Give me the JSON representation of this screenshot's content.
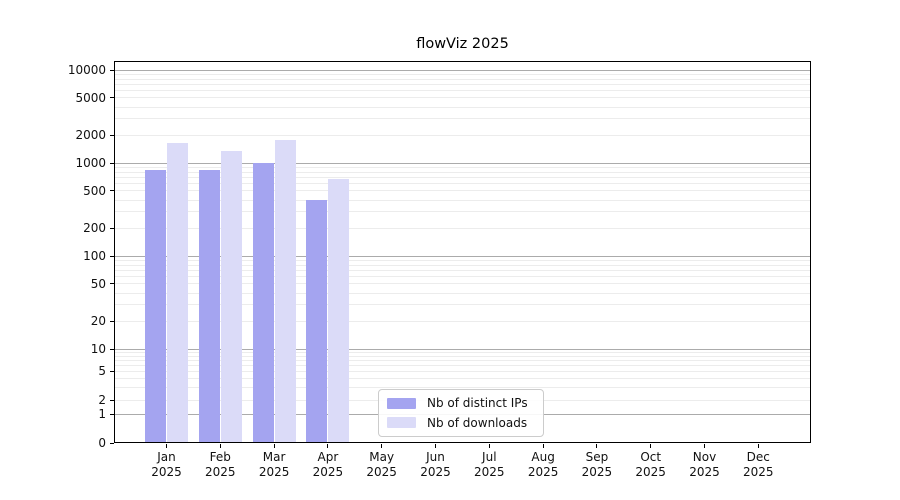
{
  "chart_data": {
    "type": "bar",
    "title": "flowViz 2025",
    "scale": "symlog",
    "grid": "horizontal, major and minor log lines",
    "legend_position": "inside bottom-left-of-center",
    "year": "2025",
    "categories": [
      "Jan",
      "Feb",
      "Mar",
      "Apr",
      "May",
      "Jun",
      "Jul",
      "Aug",
      "Sep",
      "Oct",
      "Nov",
      "Dec"
    ],
    "y_ticks": [
      10000,
      5000,
      2000,
      1000,
      500,
      200,
      100,
      50,
      20,
      10,
      5,
      2,
      1,
      0
    ],
    "ylim": [
      0,
      14000
    ],
    "series": [
      {
        "name": "Nb of distinct IPs",
        "color": "#a4a4f0",
        "values": [
          850,
          840,
          1010,
          400,
          null,
          null,
          null,
          null,
          null,
          null,
          null,
          null
        ]
      },
      {
        "name": "Nb of downloads",
        "color": "#dbdbf8",
        "values": [
          1650,
          1350,
          1750,
          680,
          null,
          null,
          null,
          null,
          null,
          null,
          null,
          null
        ]
      }
    ],
    "colors": {
      "major_grid": "#ababab",
      "minor_grid": "#ececec",
      "axis": "#000000",
      "text": "#111111"
    }
  }
}
